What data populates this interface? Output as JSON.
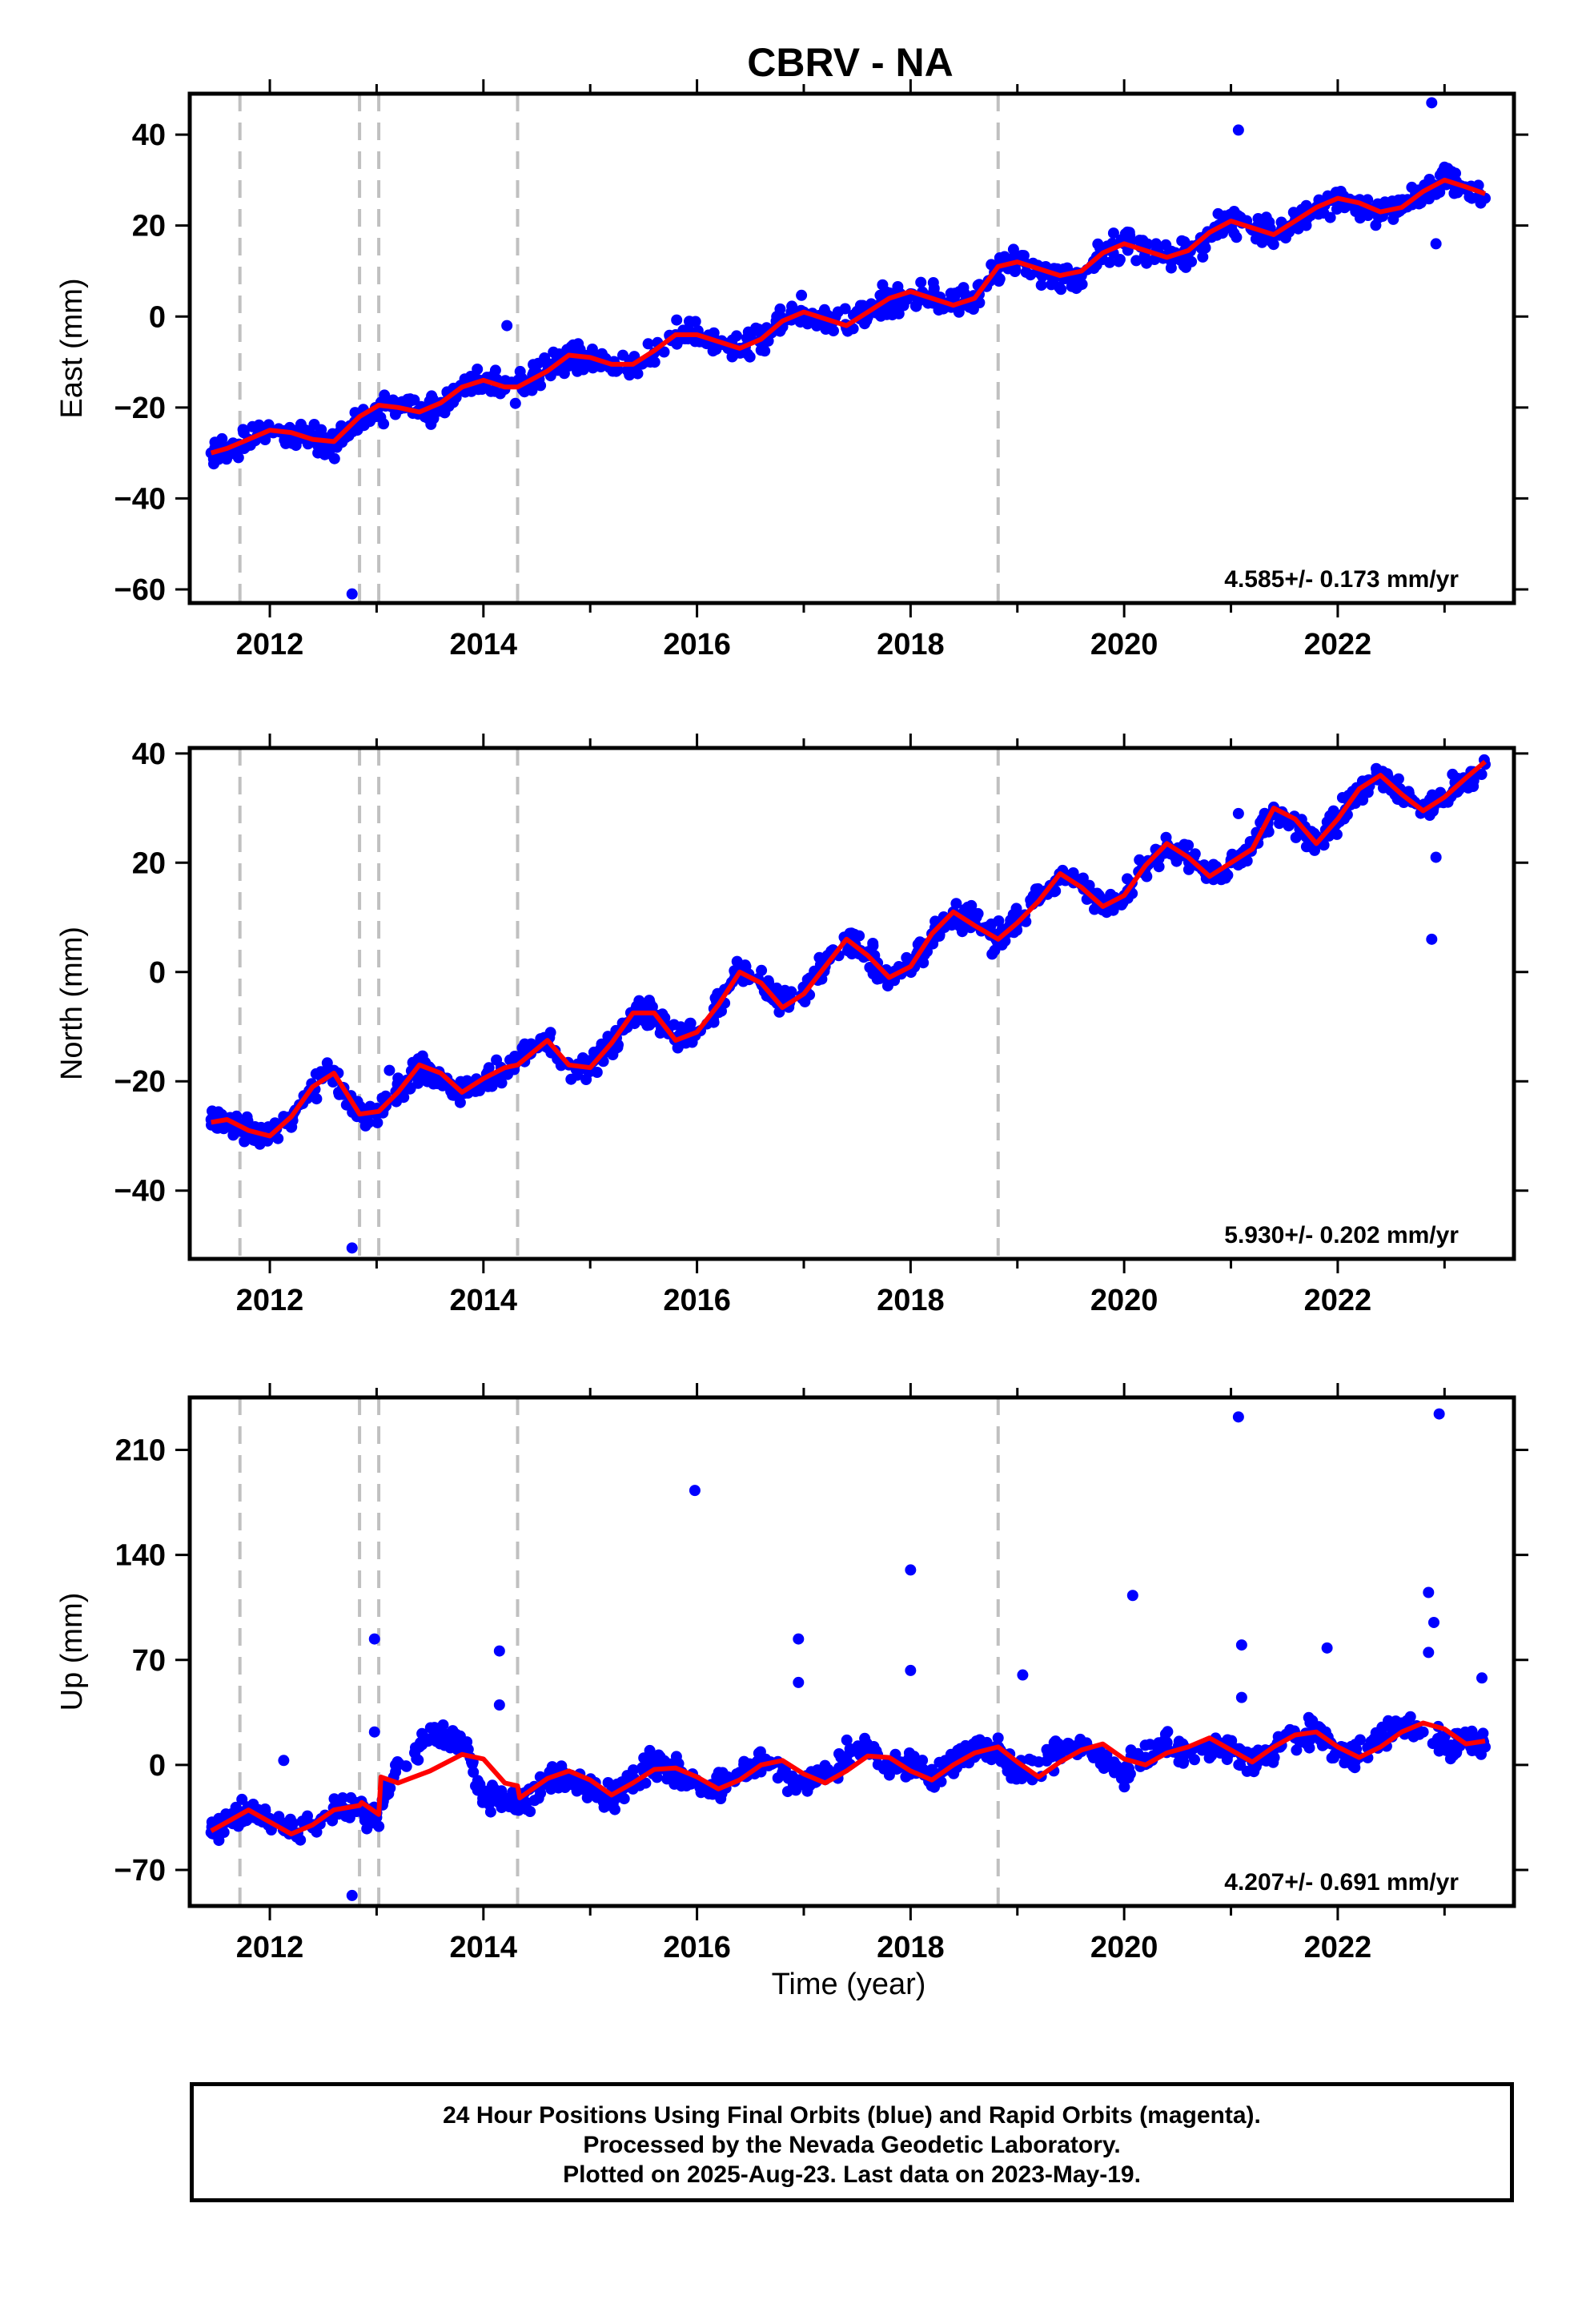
{
  "title": "CBRV - NA",
  "xlabel": "Time (year)",
  "colors": {
    "final_orbits": "#0000ff",
    "model_fit": "#ff0000",
    "offsets": "#c0c0c0",
    "frame": "#000000"
  },
  "footer": {
    "line1": "24 Hour Positions Using Final Orbits (blue) and Rapid Orbits (magenta).",
    "line2": "Processed by the Nevada Geodetic Laboratory.",
    "line3": "Plotted on 2025-Aug-23. Last data on 2023-May-19."
  },
  "chart_data": [
    {
      "type": "scatter",
      "component": "East",
      "ylabel": "East (mm)",
      "rate_text": "4.585+/- 0.173 mm/yr",
      "xlim": [
        2011.25,
        2023.65
      ],
      "ylim": [
        -63,
        49
      ],
      "x_ticks": [
        2012,
        2014,
        2016,
        2018,
        2020,
        2022
      ],
      "y_ticks": [
        -60,
        -40,
        -20,
        0,
        20,
        40
      ],
      "grid": false,
      "offsets": [
        2011.72,
        2012.84,
        2013.02,
        2014.32,
        2018.82
      ],
      "series": [
        {
          "role": "daily_positions",
          "color": "#0000ff",
          "x": [
            2011.45,
            2011.6,
            2011.8,
            2012.0,
            2012.2,
            2012.4,
            2012.6,
            2012.8,
            2013.0,
            2013.2,
            2013.4,
            2013.6,
            2013.8,
            2014.0,
            2014.2,
            2014.4,
            2014.6,
            2014.8,
            2015.0,
            2015.2,
            2015.4,
            2015.6,
            2015.8,
            2016.0,
            2016.2,
            2016.4,
            2016.6,
            2016.8,
            2017.0,
            2017.2,
            2017.4,
            2017.6,
            2017.8,
            2018.0,
            2018.2,
            2018.4,
            2018.6,
            2018.8,
            2019.0,
            2019.2,
            2019.4,
            2019.6,
            2019.8,
            2020.0,
            2020.2,
            2020.4,
            2020.6,
            2020.8,
            2021.0,
            2021.2,
            2021.4,
            2021.6,
            2021.8,
            2022.0,
            2022.2,
            2022.4,
            2022.6,
            2022.8,
            2023.0,
            2023.2,
            2023.38
          ],
          "y": [
            -30,
            -29,
            -27,
            -25,
            -26,
            -27,
            -28,
            -24,
            -21,
            -19,
            -21,
            -20,
            -16,
            -14,
            -16,
            -15,
            -12,
            -9,
            -9,
            -11,
            -11,
            -8,
            -4,
            -4,
            -6,
            -7,
            -5,
            -1,
            1,
            0,
            -2,
            1,
            4,
            5,
            4,
            3,
            4,
            10,
            12,
            10,
            9,
            9,
            14,
            16,
            15,
            13,
            14,
            18,
            21,
            19,
            18,
            21,
            23,
            26,
            25,
            23,
            24,
            27,
            30,
            28,
            26
          ],
          "outliers": [
            [
              2012.77,
              -61
            ],
            [
              2014.22,
              -2
            ],
            [
              2021.07,
              41
            ],
            [
              2022.88,
              47
            ],
            [
              2022.92,
              16
            ]
          ]
        },
        {
          "role": "model_fit",
          "color": "#ff0000",
          "x": [
            2011.45,
            2011.6,
            2011.8,
            2012.0,
            2012.2,
            2012.4,
            2012.6,
            2012.84,
            2013.02,
            2013.2,
            2013.4,
            2013.6,
            2013.8,
            2014.0,
            2014.2,
            2014.32,
            2014.6,
            2014.8,
            2015.0,
            2015.2,
            2015.4,
            2015.6,
            2015.8,
            2016.0,
            2016.2,
            2016.4,
            2016.6,
            2016.8,
            2017.0,
            2017.2,
            2017.4,
            2017.6,
            2017.8,
            2018.0,
            2018.2,
            2018.4,
            2018.6,
            2018.82,
            2019.0,
            2019.2,
            2019.4,
            2019.6,
            2019.8,
            2020.0,
            2020.2,
            2020.4,
            2020.6,
            2020.8,
            2021.0,
            2021.2,
            2021.4,
            2021.6,
            2021.8,
            2022.0,
            2022.2,
            2022.4,
            2022.6,
            2022.8,
            2023.0,
            2023.2,
            2023.38
          ],
          "y": [
            -30,
            -29,
            -27,
            -25,
            -25.5,
            -27,
            -27.5,
            -22,
            -19.5,
            -20,
            -21,
            -19,
            -15.5,
            -14,
            -15.5,
            -15.5,
            -12,
            -8.5,
            -9,
            -10.5,
            -10.5,
            -7.5,
            -4,
            -4,
            -5.5,
            -7,
            -5,
            -1,
            1,
            -0.5,
            -2,
            1,
            4,
            5.5,
            4,
            2.5,
            4,
            11,
            12,
            10.5,
            9,
            10,
            14,
            16,
            14.5,
            13,
            14.5,
            18.5,
            21,
            19.5,
            18,
            21,
            24,
            26,
            25,
            23,
            24,
            27.5,
            30,
            28.5,
            27
          ]
        }
      ]
    },
    {
      "type": "scatter",
      "component": "North",
      "ylabel": "North (mm)",
      "rate_text": "5.930+/- 0.202 mm/yr",
      "xlim": [
        2011.25,
        2023.65
      ],
      "ylim": [
        -52.5,
        41
      ],
      "x_ticks": [
        2012,
        2014,
        2016,
        2018,
        2020,
        2022
      ],
      "y_ticks": [
        -40,
        -20,
        0,
        20,
        40
      ],
      "grid": false,
      "offsets": [
        2011.72,
        2012.84,
        2013.02,
        2014.32,
        2018.82
      ],
      "series": [
        {
          "role": "daily_positions",
          "color": "#0000ff",
          "x": [
            2011.45,
            2011.6,
            2011.8,
            2012.0,
            2012.2,
            2012.4,
            2012.6,
            2012.8,
            2013.0,
            2013.2,
            2013.4,
            2013.6,
            2013.8,
            2014.0,
            2014.2,
            2014.4,
            2014.6,
            2014.8,
            2015.0,
            2015.2,
            2015.4,
            2015.6,
            2015.8,
            2016.0,
            2016.2,
            2016.4,
            2016.6,
            2016.8,
            2017.0,
            2017.2,
            2017.4,
            2017.6,
            2017.8,
            2018.0,
            2018.2,
            2018.4,
            2018.6,
            2018.8,
            2019.0,
            2019.2,
            2019.4,
            2019.6,
            2019.8,
            2020.0,
            2020.2,
            2020.4,
            2020.6,
            2020.8,
            2021.0,
            2021.2,
            2021.4,
            2021.6,
            2021.8,
            2022.0,
            2022.2,
            2022.4,
            2022.6,
            2022.8,
            2023.0,
            2023.2,
            2023.38
          ],
          "y": [
            -27,
            -27,
            -29,
            -30,
            -27,
            -21,
            -18,
            -25,
            -26,
            -22,
            -18,
            -19,
            -22,
            -20,
            -18,
            -14,
            -13,
            -17,
            -17,
            -13,
            -8,
            -8,
            -12,
            -11,
            -6,
            0,
            -2,
            -6,
            -4,
            1,
            6,
            3,
            -1,
            1,
            7,
            11,
            9,
            6,
            9,
            13,
            18,
            16,
            12,
            14,
            19,
            23,
            21,
            18,
            20,
            23,
            30,
            28,
            24,
            28,
            33,
            36,
            33,
            30,
            32,
            35,
            38
          ],
          "outliers": [
            [
              2012.77,
              -50.5
            ],
            [
              2013.12,
              -18
            ],
            [
              2021.07,
              29
            ],
            [
              2022.88,
              6
            ],
            [
              2022.92,
              21
            ]
          ]
        },
        {
          "role": "model_fit",
          "color": "#ff0000",
          "x": [
            2011.45,
            2011.6,
            2011.8,
            2012.0,
            2012.2,
            2012.4,
            2012.6,
            2012.84,
            2013.02,
            2013.2,
            2013.4,
            2013.6,
            2013.8,
            2014.0,
            2014.2,
            2014.32,
            2014.6,
            2014.8,
            2015.0,
            2015.2,
            2015.4,
            2015.6,
            2015.8,
            2016.0,
            2016.2,
            2016.4,
            2016.6,
            2016.8,
            2017.0,
            2017.2,
            2017.4,
            2017.6,
            2017.8,
            2018.0,
            2018.2,
            2018.4,
            2018.6,
            2018.82,
            2019.0,
            2019.2,
            2019.4,
            2019.6,
            2019.8,
            2020.0,
            2020.2,
            2020.4,
            2020.6,
            2020.8,
            2021.0,
            2021.2,
            2021.4,
            2021.6,
            2021.8,
            2022.0,
            2022.2,
            2022.4,
            2022.6,
            2022.8,
            2023.0,
            2023.2,
            2023.38
          ],
          "y": [
            -27.5,
            -27,
            -29,
            -30,
            -26.5,
            -21,
            -18.5,
            -26,
            -25.5,
            -22,
            -17,
            -18.5,
            -22,
            -19.5,
            -17.5,
            -17,
            -12.5,
            -17,
            -17.5,
            -13,
            -7.5,
            -7.5,
            -12.5,
            -11,
            -6,
            0,
            -2,
            -6.5,
            -4,
            1,
            6,
            3,
            -1,
            1,
            7,
            11,
            8.5,
            6,
            9,
            13,
            18,
            15.5,
            12,
            14,
            19.5,
            23.5,
            21,
            17.5,
            20,
            22.5,
            30,
            28,
            23.5,
            28,
            33.5,
            36,
            32.5,
            29.5,
            32,
            35.5,
            38.5
          ]
        }
      ]
    },
    {
      "type": "scatter",
      "component": "Up",
      "ylabel": "Up (mm)",
      "rate_text": "4.207+/- 0.691 mm/yr",
      "xlim": [
        2011.25,
        2023.65
      ],
      "ylim": [
        -94,
        245
      ],
      "x_ticks": [
        2012,
        2014,
        2016,
        2018,
        2020,
        2022
      ],
      "y_ticks": [
        -70,
        0,
        70,
        140,
        210
      ],
      "grid": false,
      "offsets": [
        2011.72,
        2012.84,
        2013.02,
        2014.32,
        2018.82
      ],
      "series": [
        {
          "role": "daily_positions",
          "color": "#0000ff",
          "x": [
            2011.45,
            2011.6,
            2011.8,
            2012.0,
            2012.2,
            2012.4,
            2012.6,
            2012.8,
            2013.0,
            2013.2,
            2013.4,
            2013.6,
            2013.8,
            2014.0,
            2014.2,
            2014.4,
            2014.6,
            2014.8,
            2015.0,
            2015.2,
            2015.4,
            2015.6,
            2015.8,
            2016.0,
            2016.2,
            2016.4,
            2016.6,
            2016.8,
            2017.0,
            2017.2,
            2017.4,
            2017.6,
            2017.8,
            2018.0,
            2018.2,
            2018.4,
            2018.6,
            2018.8,
            2019.0,
            2019.2,
            2019.4,
            2019.6,
            2019.8,
            2020.0,
            2020.2,
            2020.4,
            2020.6,
            2020.8,
            2021.0,
            2021.2,
            2021.4,
            2021.6,
            2021.8,
            2022.0,
            2022.2,
            2022.4,
            2022.6,
            2022.8,
            2023.0,
            2023.2,
            2023.38
          ],
          "y": [
            -45,
            -38,
            -32,
            -37,
            -45,
            -42,
            -33,
            -28,
            -35,
            0,
            12,
            20,
            15,
            -20,
            -22,
            -25,
            -12,
            -8,
            -18,
            -22,
            -10,
            0,
            -5,
            -12,
            -15,
            -5,
            5,
            -5,
            -12,
            -8,
            5,
            10,
            -2,
            0,
            -8,
            2,
            10,
            10,
            -5,
            2,
            10,
            12,
            2,
            -5,
            5,
            15,
            8,
            12,
            12,
            2,
            10,
            18,
            22,
            10,
            5,
            18,
            28,
            22,
            12,
            18,
            12
          ],
          "outliers": [
            [
              2012.77,
              -87
            ],
            [
              2012.13,
              3
            ],
            [
              2012.98,
              84
            ],
            [
              2012.98,
              22
            ],
            [
              2014.15,
              76
            ],
            [
              2014.15,
              40
            ],
            [
              2015.98,
              183
            ],
            [
              2016.95,
              84
            ],
            [
              2016.95,
              55
            ],
            [
              2018.0,
              130
            ],
            [
              2018.0,
              63
            ],
            [
              2019.05,
              60
            ],
            [
              2020.08,
              113
            ],
            [
              2021.07,
              232
            ],
            [
              2021.1,
              80
            ],
            [
              2021.1,
              45
            ],
            [
              2021.9,
              78
            ],
            [
              2022.85,
              115
            ],
            [
              2022.85,
              75
            ],
            [
              2022.9,
              95
            ],
            [
              2022.95,
              234
            ],
            [
              2023.35,
              58
            ]
          ]
        },
        {
          "role": "model_fit",
          "color": "#ff0000",
          "x": [
            2011.45,
            2011.6,
            2011.8,
            2012.0,
            2012.2,
            2012.4,
            2012.6,
            2012.84,
            2012.86,
            2013.02,
            2013.04,
            2013.2,
            2013.5,
            2013.8,
            2014.0,
            2014.2,
            2014.32,
            2014.34,
            2014.6,
            2014.8,
            2015.0,
            2015.2,
            2015.4,
            2015.6,
            2015.8,
            2016.0,
            2016.2,
            2016.4,
            2016.6,
            2016.8,
            2017.0,
            2017.2,
            2017.4,
            2017.6,
            2017.8,
            2018.0,
            2018.2,
            2018.4,
            2018.6,
            2018.82,
            2019.0,
            2019.2,
            2019.4,
            2019.6,
            2019.8,
            2020.0,
            2020.2,
            2020.4,
            2020.6,
            2020.8,
            2021.0,
            2021.2,
            2021.4,
            2021.6,
            2021.8,
            2022.0,
            2022.2,
            2022.4,
            2022.6,
            2022.8,
            2023.0,
            2023.2,
            2023.38
          ],
          "y": [
            -44,
            -38,
            -30,
            -38,
            -46,
            -40,
            -30,
            -27,
            -25,
            -33,
            -8,
            -12,
            -4,
            7,
            4,
            -12,
            -14,
            -22,
            -9,
            -4,
            -10,
            -20,
            -12,
            -3,
            -2,
            -8,
            -16,
            -10,
            0,
            3,
            -6,
            -12,
            -4,
            6,
            5,
            -4,
            -10,
            0,
            8,
            12,
            2,
            -8,
            2,
            10,
            14,
            4,
            0,
            8,
            12,
            18,
            10,
            2,
            12,
            20,
            22,
            12,
            5,
            12,
            22,
            28,
            24,
            14,
            16
          ]
        }
      ]
    }
  ]
}
